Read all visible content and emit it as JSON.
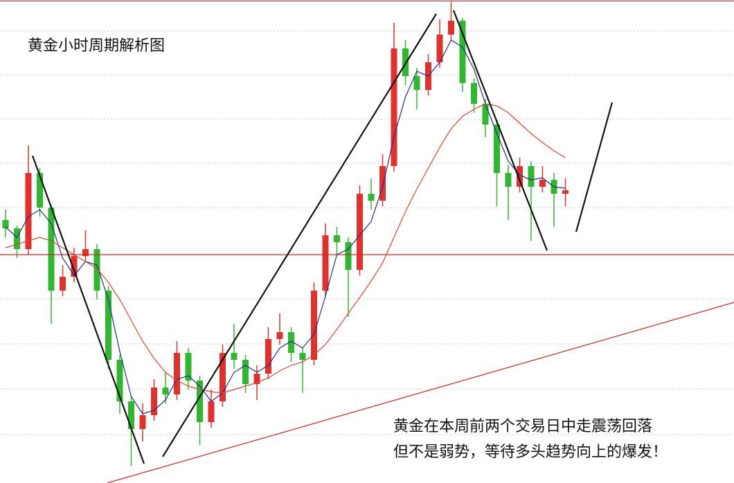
{
  "chart_data": {
    "type": "candlestick",
    "title": "黄金小时周期解析图",
    "annotation": [
      "黄金在本周前两个交易日中走震荡回落",
      "但不是弱势，等待多头趋势向上的爆发！"
    ],
    "ylim": [
      0,
      698
    ],
    "up_color": "#e0312c",
    "down_color": "#2fb82f",
    "open": [
      380,
      368,
      338,
      448,
      398,
      278,
      298,
      328,
      338,
      278,
      178,
      118,
      78,
      98,
      138,
      128,
      188,
      148,
      88,
      118,
      188,
      178,
      143,
      158,
      208,
      218,
      188,
      178,
      278,
      358,
      348,
      308,
      418,
      408,
      458,
      628,
      588,
      568,
      608,
      648,
      668,
      578,
      548,
      518,
      448,
      428,
      458,
      428,
      438,
      418
    ],
    "close": [
      368,
      338,
      448,
      398,
      278,
      298,
      328,
      338,
      278,
      178,
      118,
      78,
      98,
      138,
      128,
      188,
      148,
      88,
      118,
      188,
      178,
      143,
      158,
      208,
      218,
      188,
      178,
      278,
      358,
      348,
      308,
      418,
      408,
      458,
      628,
      588,
      568,
      608,
      648,
      668,
      578,
      548,
      518,
      448,
      428,
      458,
      428,
      438,
      418,
      423
    ],
    "high": [
      395,
      372,
      488,
      455,
      402,
      315,
      340,
      365,
      345,
      285,
      185,
      125,
      115,
      150,
      160,
      205,
      195,
      155,
      135,
      200,
      230,
      185,
      170,
      225,
      245,
      225,
      195,
      290,
      375,
      370,
      355,
      430,
      440,
      475,
      665,
      640,
      600,
      620,
      670,
      695,
      672,
      585,
      555,
      525,
      460,
      470,
      465,
      458,
      448,
      440
    ],
    "low": [
      355,
      325,
      330,
      385,
      230,
      270,
      290,
      320,
      265,
      165,
      100,
      25,
      60,
      90,
      115,
      120,
      135,
      55,
      80,
      110,
      165,
      130,
      120,
      150,
      200,
      175,
      130,
      170,
      270,
      330,
      240,
      300,
      395,
      400,
      450,
      575,
      540,
      560,
      600,
      640,
      565,
      535,
      500,
      400,
      380,
      420,
      350,
      420,
      370,
      400
    ],
    "lines": [
      {
        "color": "#1f2d8a",
        "values": [
          370,
          355,
          385,
          395,
          375,
          325,
          300,
          320,
          315,
          265,
          190,
          125,
          100,
          105,
          120,
          150,
          155,
          140,
          118,
          130,
          160,
          170,
          160,
          170,
          195,
          205,
          195,
          215,
          270,
          330,
          338,
          358,
          378,
          428,
          500,
          558,
          595,
          588,
          608,
          640,
          630,
          598,
          548,
          505,
          465,
          445,
          438,
          441,
          428,
          426
        ]
      },
      {
        "color": "#e0452c",
        "values": [
          340,
          345,
          350,
          355,
          350,
          340,
          330,
          320,
          310,
          290,
          265,
          235,
          205,
          180,
          160,
          148,
          140,
          135,
          132,
          130,
          135,
          140,
          145,
          152,
          162,
          170,
          175,
          185,
          200,
          222,
          245,
          268,
          292,
          318,
          355,
          392,
          425,
          455,
          485,
          512,
          530,
          540,
          548,
          545,
          535,
          520,
          505,
          492,
          480,
          470
        ]
      }
    ]
  }
}
